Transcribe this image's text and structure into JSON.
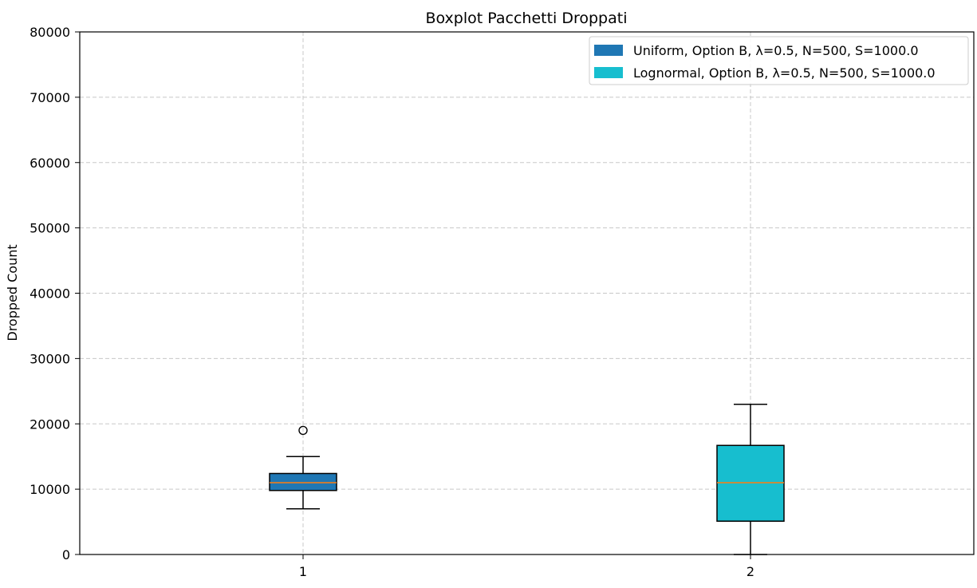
{
  "chart_data": {
    "type": "boxplot",
    "title": "Boxplot Pacchetti Droppati",
    "xlabel": "",
    "ylabel": "Dropped Count",
    "ylim": [
      0,
      80000
    ],
    "yticks": [
      0,
      10000,
      20000,
      30000,
      40000,
      50000,
      60000,
      70000,
      80000
    ],
    "categories": [
      "1",
      "2"
    ],
    "grid": true,
    "legend_position": "top-right",
    "series": [
      {
        "name": "Uniform, Option B, λ=0.5, N=500, S=1000.0",
        "color": "#1f77b4",
        "whisker_low": 7000,
        "q1": 9800,
        "median": 11000,
        "q3": 12400,
        "whisker_high": 15000,
        "outliers": [
          19000
        ]
      },
      {
        "name": "Lognormal, Option B, λ=0.5, N=500, S=1000.0",
        "color": "#17becf",
        "whisker_low": 0,
        "q1": 5100,
        "median": 11000,
        "q3": 16700,
        "whisker_high": 23000,
        "outliers": []
      }
    ],
    "median_color": "#ff7f0e"
  }
}
